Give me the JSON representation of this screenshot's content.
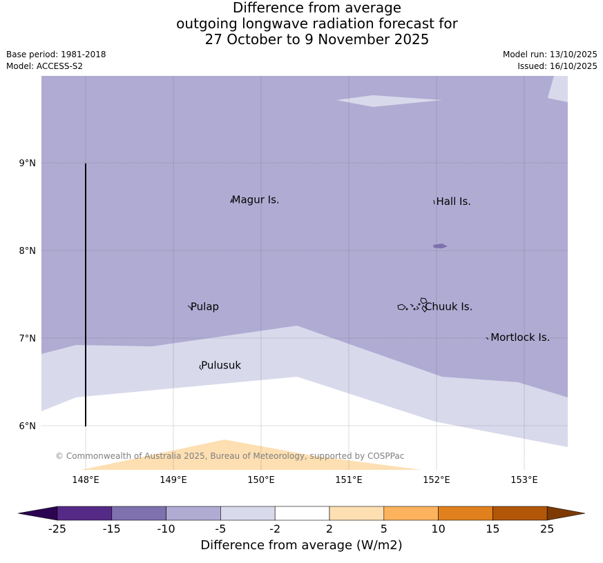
{
  "title": {
    "line1": "Difference from average",
    "line2": "outgoing longwave radiation forecast for",
    "line3": "27 October to 9 November 2025"
  },
  "meta": {
    "base_period": "Base period: 1981-2018",
    "model": "Model: ACCESS-S2",
    "model_run": "Model run: 13/10/2025",
    "issued": "Issued: 16/10/2025"
  },
  "map": {
    "lon_range": [
      147.5,
      153.5
    ],
    "lat_range": [
      5.5,
      10.0
    ],
    "lon_ticks": [
      {
        "value": 148,
        "label": "148°E"
      },
      {
        "value": 149,
        "label": "149°E"
      },
      {
        "value": 150,
        "label": "150°E"
      },
      {
        "value": 151,
        "label": "151°E"
      },
      {
        "value": 152,
        "label": "152°E"
      },
      {
        "value": 153,
        "label": "153°E"
      }
    ],
    "lat_ticks": [
      {
        "value": 9,
        "label": "9°N"
      },
      {
        "value": 8,
        "label": "8°N"
      },
      {
        "value": 7,
        "label": "7°N"
      },
      {
        "value": 6,
        "label": "6°N"
      }
    ],
    "places": [
      {
        "name": "Magur Is.",
        "lon": 149.65,
        "lat": 8.57
      },
      {
        "name": "Hall Is.",
        "lon": 151.98,
        "lat": 8.55
      },
      {
        "name": "Pulap",
        "lon": 149.18,
        "lat": 7.35
      },
      {
        "name": "Chuuk Is.",
        "lon": 151.85,
        "lat": 7.35
      },
      {
        "name": "Mortlock Is.",
        "lon": 152.6,
        "lat": 7.0
      },
      {
        "name": "Pulusuk",
        "lon": 149.3,
        "lat": 6.68
      }
    ],
    "copyright": "© Commonwealth of Australia 2025, Bureau of Meteorology, supported by COSPPac",
    "colors": {
      "class_m15_m10": "#b0abd3",
      "class_m10_m5": "#b0abd3",
      "class_m5_m2": "#d8d9eb",
      "class_m2_2": "#ffffff",
      "class_2_5": "#fddfb2",
      "patch_dark": "#7e71ae"
    }
  },
  "colorbar": {
    "label": "Difference from average (W/m2)",
    "ticks": [
      "-25",
      "-15",
      "-10",
      "-5",
      "-2",
      "2",
      "5",
      "10",
      "15",
      "25"
    ],
    "colors": [
      "#552a87",
      "#7e71ae",
      "#b0abd3",
      "#d8d9eb",
      "#ffffff",
      "#fddfb2",
      "#fdb35e",
      "#e1811e",
      "#b25607"
    ],
    "under_color": "#2d0451",
    "over_color": "#7d3a05"
  }
}
